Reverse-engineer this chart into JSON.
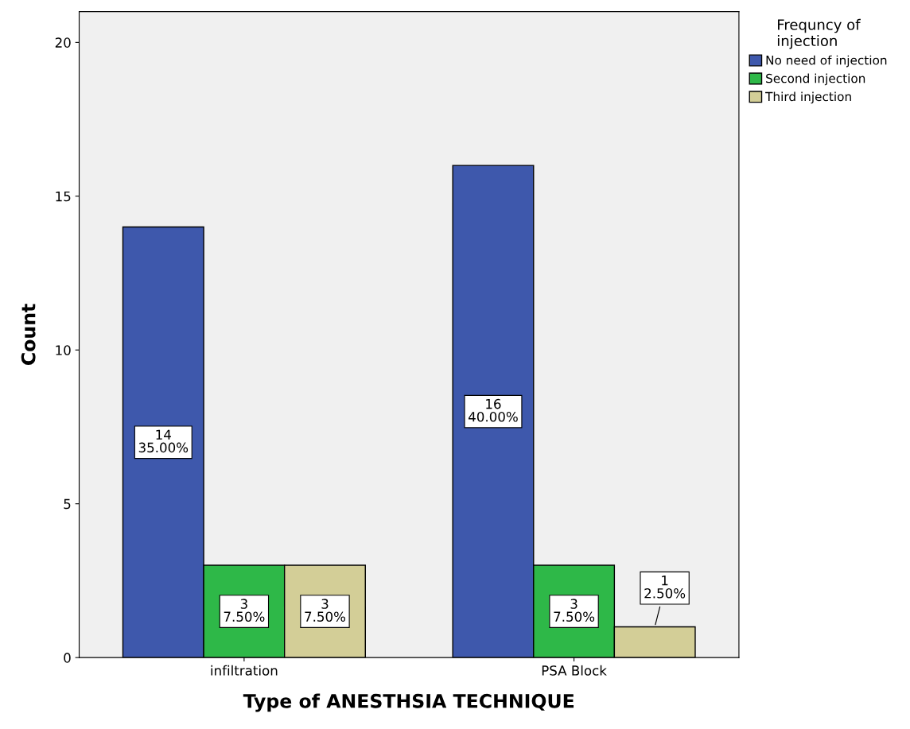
{
  "chart_data": {
    "type": "bar",
    "xlabel": "Type of ANESTHSIA TECHNIQUE",
    "ylabel": "Count",
    "legend_title": "Frequncy of\ninjection",
    "categories": [
      "infiltration",
      "PSA Block"
    ],
    "series": [
      {
        "name": "No need of injection",
        "color": "#3e58ac",
        "values": [
          14,
          16
        ],
        "value_labels": [
          "14\n35.00%",
          "16\n40.00%"
        ]
      },
      {
        "name": "Second injection",
        "color": "#2eb848",
        "values": [
          3,
          3
        ],
        "value_labels": [
          "3\n7.50%",
          "3\n7.50%"
        ]
      },
      {
        "name": "Third injection",
        "color": "#d3ce97",
        "values": [
          3,
          1
        ],
        "value_labels": [
          "3\n7.50%",
          "1\n2.50%"
        ]
      }
    ],
    "ylim": [
      0,
      21
    ],
    "yticks": [
      0,
      5,
      10,
      15,
      20
    ],
    "grid": false,
    "legend": "top right"
  }
}
